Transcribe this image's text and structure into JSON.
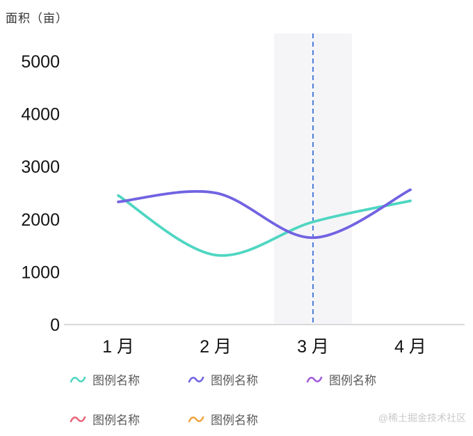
{
  "title": "面积（亩）",
  "watermark": "@稀土掘金技术社区",
  "legend": {
    "items": [
      {
        "label": "图例名称",
        "color": "#4FD6C2"
      },
      {
        "label": "图例名称",
        "color": "#7163E2"
      },
      {
        "label": "图例名称",
        "color": "#A25DDC"
      },
      {
        "label": "图例名称",
        "color": "#E8677A"
      },
      {
        "label": "图例名称",
        "color": "#F2A542"
      }
    ]
  },
  "chart_data": {
    "type": "line",
    "categories": [
      "1 月",
      "2 月",
      "3 月",
      "4 月"
    ],
    "series": [
      {
        "name": "图例名称",
        "color": "#4FD6C2",
        "values": [
          2450,
          1320,
          1950,
          2350
        ]
      },
      {
        "name": "图例名称",
        "color": "#7163E2",
        "values": [
          2330,
          2500,
          1650,
          2560
        ]
      }
    ],
    "title": "面积（亩）",
    "xlabel": "",
    "ylabel": "面积（亩）",
    "ylim": [
      0,
      5000
    ],
    "yticks": [
      0,
      1000,
      2000,
      3000,
      4000,
      5000
    ],
    "grid": false,
    "legend_position": "bottom",
    "annotations": {
      "vertical_dashed_line_at": "3 月",
      "highlight_band_at": "3 月",
      "guide_color": "#4E7CD9",
      "band_color": "#f5f5f7",
      "axis_line_color": "#d9d9d9",
      "tick_label_color": "#141414"
    }
  }
}
